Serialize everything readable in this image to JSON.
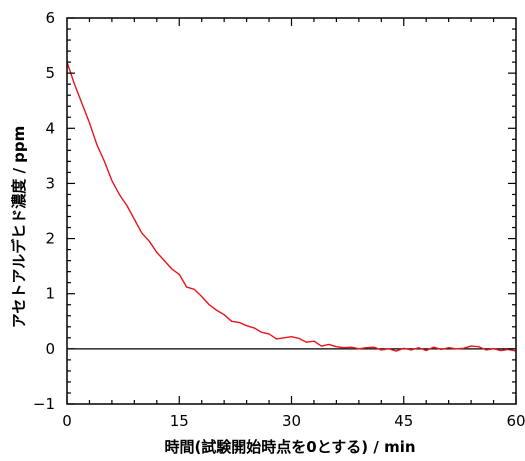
{
  "chart_data": {
    "type": "line",
    "title": "",
    "xlabel": "時間(試験開始時点を0とする) / min",
    "ylabel": "アセトアルデヒド濃度 / ppm",
    "xlim": [
      0,
      60
    ],
    "ylim": [
      -1,
      6
    ],
    "xticks": [
      0,
      15,
      30,
      45,
      60
    ],
    "yticks": [
      -1,
      0,
      1,
      2,
      3,
      4,
      5,
      6
    ],
    "grid": false,
    "legend": "none",
    "reference_line": {
      "y": 0,
      "color": "#000000"
    },
    "series": [
      {
        "color": "#e8141c",
        "x": [
          0,
          0.5,
          1,
          2,
          3,
          4,
          5,
          6,
          7,
          8,
          9,
          10,
          11,
          12,
          13,
          14,
          15,
          16,
          17,
          18,
          19,
          20,
          21,
          22,
          23,
          24,
          25,
          26,
          27,
          28,
          29,
          30,
          31,
          32,
          33,
          34,
          35,
          36,
          37,
          38,
          39,
          40,
          41,
          42,
          43,
          44,
          45,
          46,
          47,
          48,
          49,
          50,
          51,
          52,
          53,
          54,
          55,
          56,
          57,
          58,
          59,
          60
        ],
        "y": [
          5.2,
          5.0,
          4.8,
          4.45,
          4.1,
          3.7,
          3.4,
          3.05,
          2.8,
          2.6,
          2.35,
          2.1,
          1.95,
          1.75,
          1.6,
          1.45,
          1.35,
          1.12,
          1.08,
          0.95,
          0.8,
          0.7,
          0.62,
          0.5,
          0.48,
          0.42,
          0.38,
          0.3,
          0.27,
          0.18,
          0.2,
          0.22,
          0.19,
          0.12,
          0.14,
          0.05,
          0.08,
          0.04,
          0.02,
          0.03,
          0.0,
          0.02,
          0.03,
          -0.02,
          0.0,
          -0.04,
          0.01,
          -0.02,
          0.02,
          -0.03,
          0.03,
          -0.01,
          0.02,
          0.0,
          0.01,
          0.05,
          0.04,
          -0.02,
          0.0,
          -0.03,
          -0.01,
          -0.04
        ]
      }
    ]
  }
}
